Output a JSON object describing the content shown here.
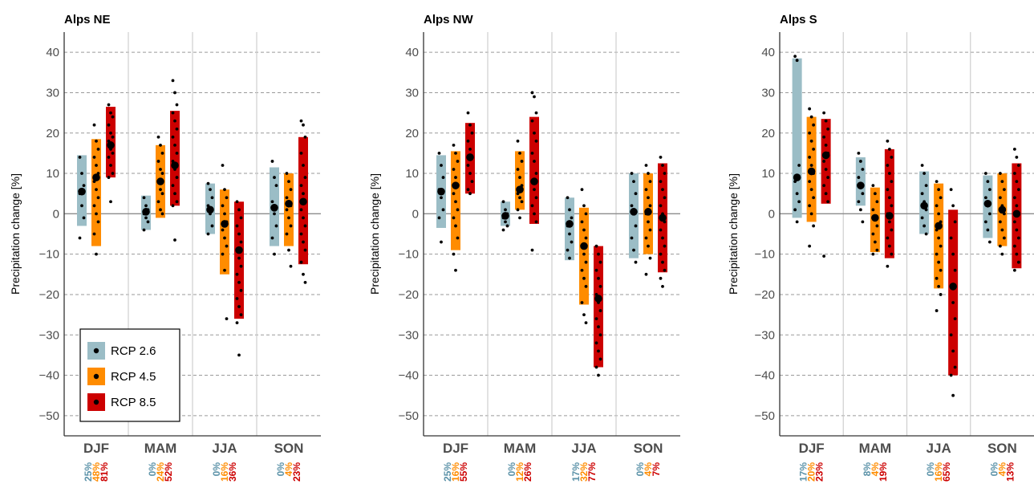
{
  "chart_data": [
    {
      "type": "scatter",
      "title": "Alps NE",
      "ylabel": "Precipitation change [%]",
      "ylim": [
        -55,
        45
      ],
      "yticks": [
        40,
        30,
        20,
        10,
        0,
        -10,
        -20,
        -30,
        -40,
        -50
      ],
      "categories": [
        "DJF",
        "MAM",
        "JJA",
        "SON"
      ],
      "series": [
        {
          "name": "RCP 2.6",
          "color": "#9bbdc6",
          "ranges": [
            [
              -3,
              14.5
            ],
            [
              -4,
              4.5
            ],
            [
              -5,
              7.5
            ],
            [
              -8,
              11.5
            ]
          ],
          "medians": [
            5.5,
            0.5,
            1,
            1.5
          ],
          "percent_labels": [
            "25%",
            "0%",
            "0%",
            "0%"
          ],
          "members": [
            [
              14,
              10,
              7,
              5,
              2,
              -1,
              -6
            ],
            [
              4,
              2,
              1,
              0,
              -1,
              -2,
              -4
            ],
            [
              7.5,
              6,
              4,
              2,
              0,
              -3,
              -5
            ],
            [
              13,
              9,
              7,
              3,
              0,
              -3,
              -6,
              -10
            ]
          ]
        },
        {
          "name": "RCP 4.5",
          "color": "#ff8c00",
          "ranges": [
            [
              -8,
              18.5
            ],
            [
              -1,
              17
            ],
            [
              -15,
              6
            ],
            [
              -8,
              10
            ]
          ],
          "medians": [
            9,
            8,
            -2.5,
            2.5
          ],
          "percent_labels": [
            "48%",
            "24%",
            "16%",
            "4%"
          ],
          "members": [
            [
              22,
              18,
              16,
              14,
              12,
              10,
              8,
              6,
              4,
              2,
              0,
              -2,
              -5,
              -10
            ],
            [
              19,
              17,
              15,
              13,
              11,
              10,
              8,
              6,
              5,
              3,
              1,
              0
            ],
            [
              12,
              6,
              4,
              2,
              0,
              -2,
              -4,
              -6,
              -8,
              -10,
              -14,
              -26
            ],
            [
              10,
              8,
              6,
              4,
              3,
              2,
              1,
              -1,
              -3,
              -5,
              -9,
              -13
            ]
          ]
        },
        {
          "name": "RCP 8.5",
          "color": "#cc0000",
          "ranges": [
            [
              9,
              26.5
            ],
            [
              2,
              25.5
            ],
            [
              -26,
              3
            ],
            [
              -12.5,
              19
            ]
          ],
          "medians": [
            17,
            12,
            -9,
            3
          ],
          "percent_labels": [
            "81%",
            "52%",
            "36%",
            "23%"
          ],
          "members": [
            [
              27,
              25,
              24,
              22,
              20,
              19,
              18,
              16,
              15,
              14,
              12,
              10,
              9,
              3
            ],
            [
              33,
              30,
              27,
              25,
              23,
              21,
              19,
              17,
              15,
              13,
              11,
              9,
              7,
              5,
              3,
              2,
              -6.5
            ],
            [
              3,
              1,
              -1,
              -3,
              -5,
              -7,
              -9,
              -11,
              -13,
              -15,
              -17,
              -19,
              -21,
              -23,
              -25,
              -27,
              -35
            ],
            [
              23,
              22,
              19,
              15,
              12,
              9,
              7,
              5,
              3,
              1,
              -1,
              -3,
              -5,
              -7,
              -9,
              -12,
              -15,
              -17
            ]
          ]
        }
      ],
      "percent_colors": [
        "#5b92a8",
        "#ff8c00",
        "#cc0000"
      ],
      "legend": {
        "placement": "bottom-left",
        "entries": [
          "RCP 2.6",
          "RCP 4.5",
          "RCP 8.5"
        ]
      }
    },
    {
      "type": "scatter",
      "title": "Alps NW",
      "ylabel": "Precipitation change [%]",
      "ylim": [
        -55,
        45
      ],
      "yticks": [
        40,
        30,
        20,
        10,
        0,
        -10,
        -20,
        -30,
        -40,
        -50
      ],
      "categories": [
        "DJF",
        "MAM",
        "JJA",
        "SON"
      ],
      "series": [
        {
          "name": "RCP 2.6",
          "color": "#9bbdc6",
          "ranges": [
            [
              -3.5,
              14.5
            ],
            [
              -3,
              3
            ],
            [
              -11.5,
              4
            ],
            [
              -11,
              10
            ]
          ],
          "medians": [
            5.5,
            -0.5,
            -2.5,
            0.5
          ],
          "percent_labels": [
            "25%",
            "0%",
            "17%",
            "0%"
          ],
          "members": [
            [
              15,
              12,
              9,
              6,
              4,
              1,
              -1,
              -7
            ],
            [
              3,
              1,
              0,
              -1,
              -2,
              -3,
              -4
            ],
            [
              4,
              1,
              -1,
              -3,
              -5,
              -7,
              -9,
              -11
            ],
            [
              10,
              8,
              5,
              2,
              0,
              -3,
              -6,
              -9,
              -12
            ]
          ]
        },
        {
          "name": "RCP 4.5",
          "color": "#ff8c00",
          "ranges": [
            [
              -9,
              15.5
            ],
            [
              1,
              15.5
            ],
            [
              -22.5,
              1.5
            ],
            [
              -10,
              10
            ]
          ],
          "medians": [
            7,
            6,
            -8,
            0.5
          ],
          "percent_labels": [
            "16%",
            "12%",
            "32%",
            "4%"
          ],
          "members": [
            [
              17,
              15,
              13,
              11,
              9,
              7,
              5,
              3,
              1,
              -1,
              -3,
              -6,
              -10,
              -14
            ],
            [
              18,
              15,
              13,
              11,
              9,
              7,
              5,
              4,
              3,
              1,
              -1
            ],
            [
              6,
              2,
              0,
              -2,
              -4,
              -6,
              -8,
              -10,
              -12,
              -14,
              -16,
              -18,
              -22,
              -25,
              -27
            ],
            [
              12,
              10,
              8,
              6,
              4,
              2,
              0,
              -2,
              -4,
              -6,
              -8,
              -11,
              -15
            ]
          ]
        },
        {
          "name": "RCP 8.5",
          "color": "#cc0000",
          "ranges": [
            [
              5,
              22.5
            ],
            [
              -2.5,
              24
            ],
            [
              -38,
              -8
            ],
            [
              -14.5,
              12.5
            ]
          ],
          "medians": [
            14,
            8,
            -21,
            -1
          ],
          "percent_labels": [
            "55%",
            "26%",
            "77%",
            "7%"
          ],
          "members": [
            [
              25,
              22,
              20,
              18,
              16,
              14,
              12,
              10,
              8,
              6,
              5
            ],
            [
              30,
              29,
              25,
              23,
              20,
              18,
              15,
              13,
              10,
              8,
              6,
              4,
              2,
              0,
              -2,
              -9
            ],
            [
              -8,
              -10,
              -12,
              -14,
              -16,
              -18,
              -20,
              -22,
              -24,
              -26,
              -28,
              -30,
              -32,
              -34,
              -36,
              -38,
              -40
            ],
            [
              14,
              12,
              10,
              8,
              6,
              4,
              2,
              0,
              -2,
              -4,
              -6,
              -8,
              -10,
              -12,
              -14,
              -16,
              -18
            ]
          ]
        }
      ],
      "percent_colors": [
        "#5b92a8",
        "#ff8c00",
        "#cc0000"
      ]
    },
    {
      "type": "scatter",
      "title": "Alps S",
      "ylabel": "Precipitation change [%]",
      "ylim": [
        -55,
        45
      ],
      "yticks": [
        40,
        30,
        20,
        10,
        0,
        -10,
        -20,
        -30,
        -40,
        -50
      ],
      "categories": [
        "DJF",
        "MAM",
        "JJA",
        "SON"
      ],
      "series": [
        {
          "name": "RCP 2.6",
          "color": "#9bbdc6",
          "ranges": [
            [
              -1,
              38.5
            ],
            [
              2,
              14
            ],
            [
              -5,
              10.5
            ],
            [
              -6,
              9.5
            ]
          ],
          "medians": [
            9,
            7,
            2,
            2.5
          ],
          "percent_labels": [
            "17%",
            "8%",
            "0%",
            "0%"
          ],
          "members": [
            [
              39,
              38,
              12,
              8,
              5,
              3,
              1,
              -2
            ],
            [
              15,
              13,
              11,
              9,
              7,
              5,
              3,
              1,
              -2
            ],
            [
              12,
              10,
              7,
              5,
              3,
              1,
              -1,
              -3,
              -5
            ],
            [
              10,
              8,
              6,
              4,
              2,
              0,
              -2,
              -4,
              -7
            ]
          ]
        },
        {
          "name": "RCP 4.5",
          "color": "#ff8c00",
          "ranges": [
            [
              -2,
              24
            ],
            [
              -9.5,
              6.5
            ],
            [
              -18.5,
              7.5
            ],
            [
              -8,
              10
            ]
          ],
          "medians": [
            10.5,
            -1,
            -3,
            1
          ],
          "percent_labels": [
            "20%",
            "4%",
            "16%",
            "4%"
          ],
          "members": [
            [
              26,
              24,
              22,
              20,
              18,
              16,
              14,
              12,
              10,
              8,
              6,
              4,
              2,
              0,
              -3,
              -8
            ],
            [
              7,
              5,
              3,
              1,
              -1,
              -3,
              -5,
              -7,
              -9,
              -10
            ],
            [
              8,
              6,
              4,
              2,
              0,
              -2,
              -4,
              -6,
              -8,
              -10,
              -12,
              -14,
              -16,
              -18,
              -20,
              -24
            ],
            [
              10,
              8,
              6,
              4,
              2,
              0,
              -2,
              -4,
              -6,
              -8,
              -10
            ]
          ]
        },
        {
          "name": "RCP 8.5",
          "color": "#cc0000",
          "ranges": [
            [
              2.5,
              23.5
            ],
            [
              -11,
              16
            ],
            [
              -40,
              1
            ],
            [
              -13.5,
              12.5
            ]
          ],
          "medians": [
            14.5,
            -0.5,
            -18,
            0
          ],
          "percent_labels": [
            "23%",
            "19%",
            "65%",
            "13%"
          ],
          "members": [
            [
              25,
              23,
              21,
              19,
              17,
              15,
              13,
              11,
              9,
              7,
              5,
              3,
              -10.5
            ],
            [
              18,
              16,
              14,
              12,
              10,
              8,
              6,
              4,
              2,
              0,
              -2,
              -4,
              -6,
              -8,
              -10,
              -13
            ],
            [
              6,
              2,
              -2,
              -6,
              -10,
              -14,
              -18,
              -22,
              -26,
              -30,
              -34,
              -38,
              -40,
              -45
            ],
            [
              16,
              14,
              12,
              10,
              8,
              6,
              4,
              2,
              0,
              -2,
              -4,
              -6,
              -8,
              -10,
              -12,
              -14
            ]
          ]
        }
      ],
      "percent_colors": [
        "#5b92a8",
        "#ff8c00",
        "#cc0000"
      ]
    }
  ]
}
